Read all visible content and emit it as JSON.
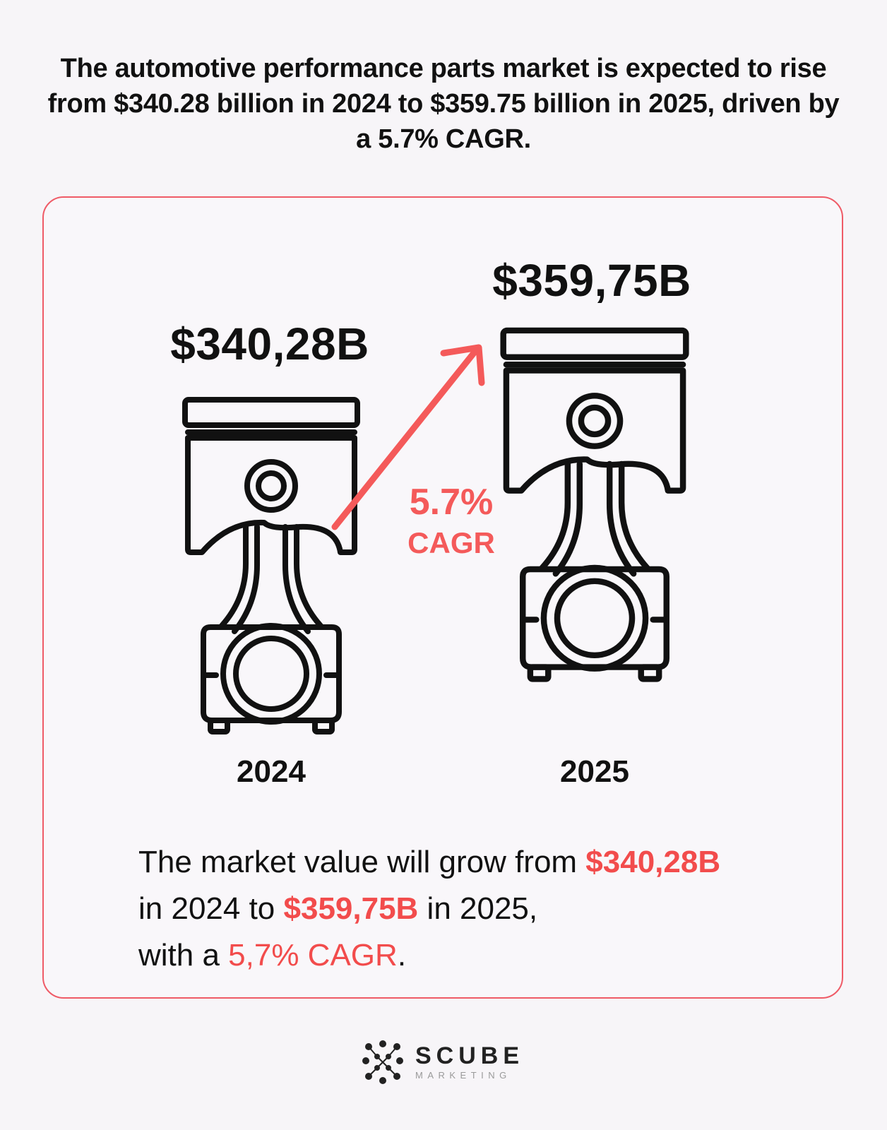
{
  "headline": "The automotive performance parts market is expected to rise from $340.28 billion in 2024 to $359.75 billion in 2025, driven by a 5.7% CAGR.",
  "card": {
    "value_2024": "$340,28B",
    "value_2025": "$359,75B",
    "year_2024": "2024",
    "year_2025": "2025",
    "cagr_percent": "5.7%",
    "cagr_label": "CAGR",
    "summary": {
      "part1": "The market value will grow from ",
      "value_2024": "$340,28B",
      "part2": " in 2024 to ",
      "value_2025": "$359,75B",
      "part3": " in 2025,",
      "part4": "with a ",
      "cagr": "5,7% CAGR",
      "part5": "."
    }
  },
  "brand": {
    "name": "SCUBE",
    "tagline": "MARKETING"
  },
  "colors": {
    "accent": "#f24c4c",
    "border": "#ef5b67",
    "text": "#111111",
    "background": "#f7f5f8"
  },
  "icons": {
    "piston_2024": "piston-icon",
    "piston_2025": "piston-icon",
    "growth_arrow": "arrow-up-right-icon",
    "logo": "scube-logo-icon"
  }
}
